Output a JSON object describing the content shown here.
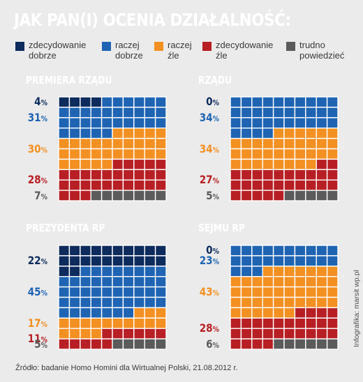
{
  "title": "JAK PAN(I) OCENIA DZIAŁALNOŚĆ:",
  "legend": [
    {
      "label": "zdecydowanie\ndobrze",
      "color": "#0d2b5c"
    },
    {
      "label": "raczej\ndobrze",
      "color": "#1f64b3"
    },
    {
      "label": "raczej\nźle",
      "color": "#f39022"
    },
    {
      "label": "zdecydowanie\nźle",
      "color": "#b71f24"
    },
    {
      "label": "trudno\npowiedzieć",
      "color": "#5b5b5b"
    }
  ],
  "chart_data": [
    {
      "type": "waffle",
      "title": "PREMIERA RZĄDU",
      "categories": [
        "zdecydowanie dobrze",
        "raczej dobrze",
        "raczej źle",
        "zdecydowanie źle",
        "trudno powiedzieć"
      ],
      "values": [
        4,
        31,
        30,
        28,
        7
      ]
    },
    {
      "type": "waffle",
      "title": "RZĄDU",
      "categories": [
        "zdecydowanie dobrze",
        "raczej dobrze",
        "raczej źle",
        "zdecydowanie źle",
        "trudno powiedzieć"
      ],
      "values": [
        0,
        34,
        34,
        27,
        5
      ]
    },
    {
      "type": "waffle",
      "title": "PREZYDENTA RP",
      "categories": [
        "zdecydowanie dobrze",
        "raczej dobrze",
        "raczej źle",
        "zdecydowanie źle",
        "trudno powiedzieć"
      ],
      "values": [
        22,
        45,
        17,
        11,
        5
      ]
    },
    {
      "type": "waffle",
      "title": "SEJMU RP",
      "categories": [
        "zdecydowanie dobrze",
        "raczej dobrze",
        "raczej źle",
        "zdecydowanie źle",
        "trudno powiedzieć"
      ],
      "values": [
        0,
        23,
        43,
        28,
        6
      ]
    }
  ],
  "credit": "Infografika: marsit wp.pl",
  "source": "Źródło: badanie Homo Homini dla Wirtualnej Polski, 21.08.2012 r."
}
